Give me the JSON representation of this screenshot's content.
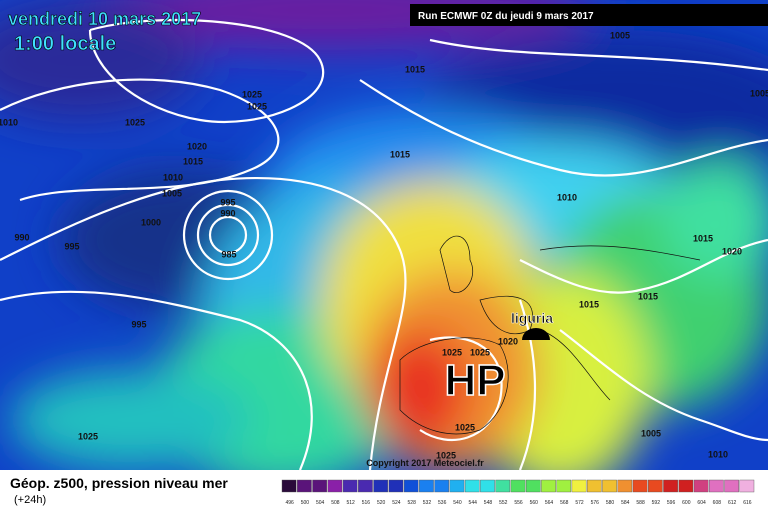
{
  "header": {
    "date": "vendredi 10 mars 2017",
    "time": "1:00 locale",
    "run": "Run ECMWF 0Z du jeudi 9 mars 2017"
  },
  "map": {
    "isobar_labels": [
      1015,
      1025,
      1025,
      1025,
      1010,
      1020,
      1015,
      1010,
      1005,
      995,
      990,
      1000,
      990,
      995,
      985,
      995,
      1015,
      1010,
      1005,
      1005,
      1015,
      1020,
      1015,
      1015,
      1020,
      1025,
      1025,
      1025,
      1025,
      1005,
      1010,
      1025
    ],
    "pressure_center": "HP",
    "place": "liguria",
    "copyright": "Copyright 2017 Meteociel.fr"
  },
  "legend": {
    "title": "Géop. z500, pression niveau mer",
    "lead": "(+24h)",
    "scale": [
      496,
      500,
      504,
      508,
      512,
      516,
      520,
      524,
      528,
      532,
      536,
      540,
      544,
      548,
      552,
      556,
      560,
      564,
      568,
      572,
      576,
      580,
      584,
      588,
      592,
      596,
      600,
      604,
      608,
      612,
      616
    ]
  }
}
